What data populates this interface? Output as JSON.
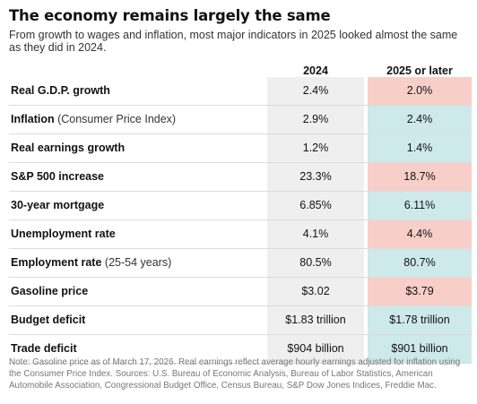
{
  "title": "The economy remains largely the same",
  "subtitle": "From growth to wages and inflation, most major indicators in 2025 looked almost the same as they did in 2024.",
  "chart_data": {
    "type": "table",
    "columns": [
      "2024",
      "2025 or later"
    ],
    "rows": [
      {
        "label": "Real G.D.P. growth",
        "note": "",
        "v2024": "2.4%",
        "v2025": "2.0%",
        "color": "#f7cfc8"
      },
      {
        "label": "Inflation",
        "note": "(Consumer Price Index)",
        "v2024": "2.9%",
        "v2025": "2.4%",
        "color": "#cde9ea"
      },
      {
        "label": "Real earnings growth",
        "note": "",
        "v2024": "1.2%",
        "v2025": "1.4%",
        "color": "#cde9ea"
      },
      {
        "label": "S&P 500 increase",
        "note": "",
        "v2024": "23.3%",
        "v2025": "18.7%",
        "color": "#f7cfc8"
      },
      {
        "label": "30-year mortgage",
        "note": "",
        "v2024": "6.85%",
        "v2025": "6.11%",
        "color": "#cde9ea"
      },
      {
        "label": "Unemployment rate",
        "note": "",
        "v2024": "4.1%",
        "v2025": "4.4%",
        "color": "#f7cfc8"
      },
      {
        "label": "Employment rate",
        "note": "(25-54 years)",
        "v2024": "80.5%",
        "v2025": "80.7%",
        "color": "#cde9ea"
      },
      {
        "label": "Gasoline price",
        "note": "",
        "v2024": "$3.02",
        "v2025": "$3.79",
        "color": "#f7cfc8"
      },
      {
        "label": "Budget deficit",
        "note": "",
        "v2024": "$1.83 trillion",
        "v2025": "$1.78 trillion",
        "color": "#cde9ea"
      },
      {
        "label": "Trade deficit",
        "note": "",
        "v2024": "$904 billion",
        "v2025": "$901 billion",
        "color": "#cde9ea"
      }
    ]
  },
  "footnote": "Note: Gasoline price as of March 17, 2026. Real earnings reflect average hourly earnings adjusted for inflation using the Consumer Price Index. Sources: U.S. Bureau of Economic Analysis, Bureau of Labor Statistics, American Automobile Association, Congressional Budget Office, Census Bureau, S&P Dow Jones Indices, Freddie Mac."
}
